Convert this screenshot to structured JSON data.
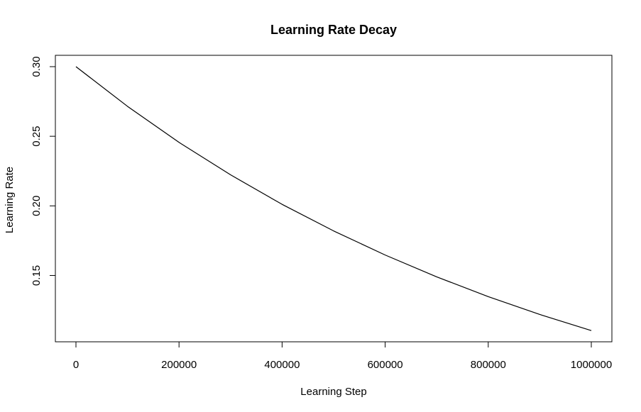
{
  "chart_data": {
    "type": "line",
    "title": "Learning Rate Decay",
    "xlabel": "Learning Step",
    "ylabel": "Learning Rate",
    "xlim": [
      0,
      1000000
    ],
    "ylim": [
      0.11,
      0.3
    ],
    "x_ticks": [
      0,
      200000,
      400000,
      600000,
      800000,
      1000000
    ],
    "x_tick_labels": [
      "0",
      "200000",
      "400000",
      "600000",
      "800000",
      "1000000"
    ],
    "y_ticks": [
      0.15,
      0.2,
      0.25,
      0.3
    ],
    "y_tick_labels": [
      "0.15",
      "0.20",
      "0.25",
      "0.30"
    ],
    "grid": false,
    "legend": "none",
    "series": [
      {
        "color": "#000000",
        "x": [
          0,
          100000,
          200000,
          300000,
          400000,
          500000,
          600000,
          700000,
          800000,
          900000,
          1000000
        ],
        "y": [
          0.3,
          0.2715,
          0.2456,
          0.2223,
          0.2011,
          0.182,
          0.1647,
          0.149,
          0.1348,
          0.122,
          0.1104
        ]
      }
    ]
  }
}
